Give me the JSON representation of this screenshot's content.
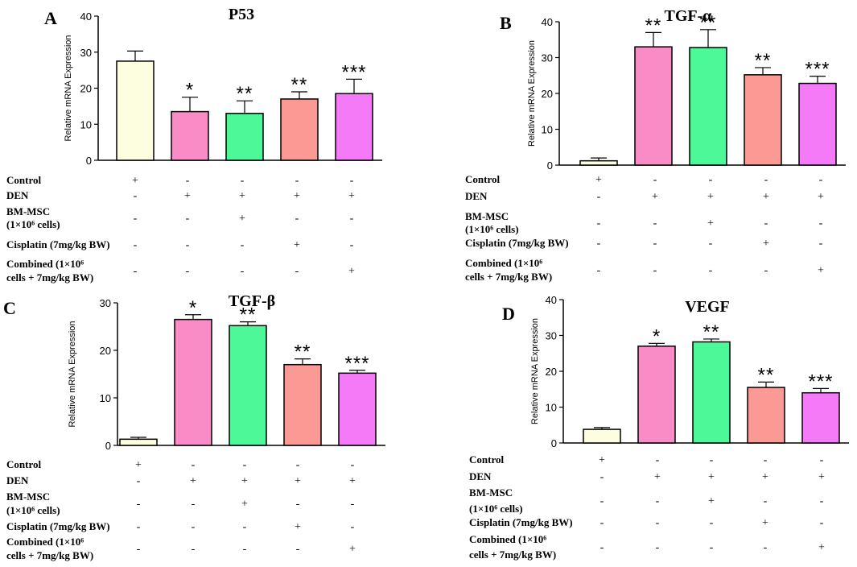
{
  "figure": {
    "row_labels": [
      [
        "Control"
      ],
      [
        "DEN"
      ],
      [
        "BM-MSC",
        "(1×10⁶ cells)"
      ],
      [
        "Cisplatin  (7mg/kg BW)"
      ],
      [
        "Combined  (1×10⁶",
        "cells + 7mg/kg BW)"
      ]
    ],
    "treatment_signs": [
      [
        "+",
        "-",
        "-",
        "-",
        "-"
      ],
      [
        "-",
        "+",
        "+",
        "+",
        "+"
      ],
      [
        "-",
        "-",
        "+",
        "-",
        "-"
      ],
      [
        "-",
        "-",
        "-",
        "+",
        "-"
      ],
      [
        "-",
        "-",
        "-",
        "-",
        "+"
      ]
    ],
    "bar_colors": [
      "#fdfde0",
      "#f98bc6",
      "#4df898",
      "#fb9a94",
      "#f47af8"
    ],
    "ylabel": "Relative mRNA Expression"
  },
  "chart_data": [
    {
      "type": "bar",
      "panel": "A",
      "title": "P53",
      "categories": [
        "Control",
        "DEN",
        "BM-MSC",
        "Cisplatin",
        "Combined"
      ],
      "values": [
        27.5,
        13.5,
        13,
        17,
        18.5
      ],
      "errors": [
        2.8,
        4,
        3.5,
        2,
        4
      ],
      "significance": [
        "",
        "*",
        "**",
        "**",
        "***"
      ],
      "ylabel": "Relative mRNA Expression",
      "ylim": [
        0,
        40
      ],
      "yticks": [
        0,
        10,
        20,
        30,
        40
      ]
    },
    {
      "type": "bar",
      "panel": "B",
      "title": "TGF-α",
      "categories": [
        "Control",
        "DEN",
        "BM-MSC",
        "Cisplatin",
        "Combined"
      ],
      "values": [
        1.2,
        33,
        32.8,
        25.2,
        22.8
      ],
      "errors": [
        0.8,
        4,
        5,
        2,
        2
      ],
      "significance": [
        "",
        "**",
        "**",
        "**",
        "***"
      ],
      "ylabel": "Relative mRNA Expression",
      "ylim": [
        0,
        40
      ],
      "yticks": [
        0,
        10,
        20,
        30,
        40
      ]
    },
    {
      "type": "bar",
      "panel": "C",
      "title": "TGF-β",
      "categories": [
        "Control",
        "DEN",
        "BM-MSC",
        "Cisplatin",
        "Combined"
      ],
      "values": [
        1.3,
        26.5,
        25.2,
        17,
        15.2
      ],
      "errors": [
        0.4,
        1,
        0.8,
        1.2,
        0.6
      ],
      "significance": [
        "",
        "*",
        "**",
        "**",
        "***"
      ],
      "ylabel": "Relative mRNA Expression",
      "ylim": [
        0,
        30
      ],
      "yticks": [
        0,
        10,
        20,
        30
      ]
    },
    {
      "type": "bar",
      "panel": "D",
      "title": "VEGF",
      "categories": [
        "Control",
        "DEN",
        "BM-MSC",
        "Cisplatin",
        "Combined"
      ],
      "values": [
        3.8,
        27,
        28.2,
        15.5,
        14
      ],
      "errors": [
        0.5,
        0.8,
        0.8,
        1.5,
        1.2
      ],
      "significance": [
        "",
        "*",
        "**",
        "**",
        "***"
      ],
      "ylabel": "Relative mRNA Expression",
      "ylim": [
        0,
        40
      ],
      "yticks": [
        0,
        10,
        20,
        30,
        40
      ]
    }
  ]
}
